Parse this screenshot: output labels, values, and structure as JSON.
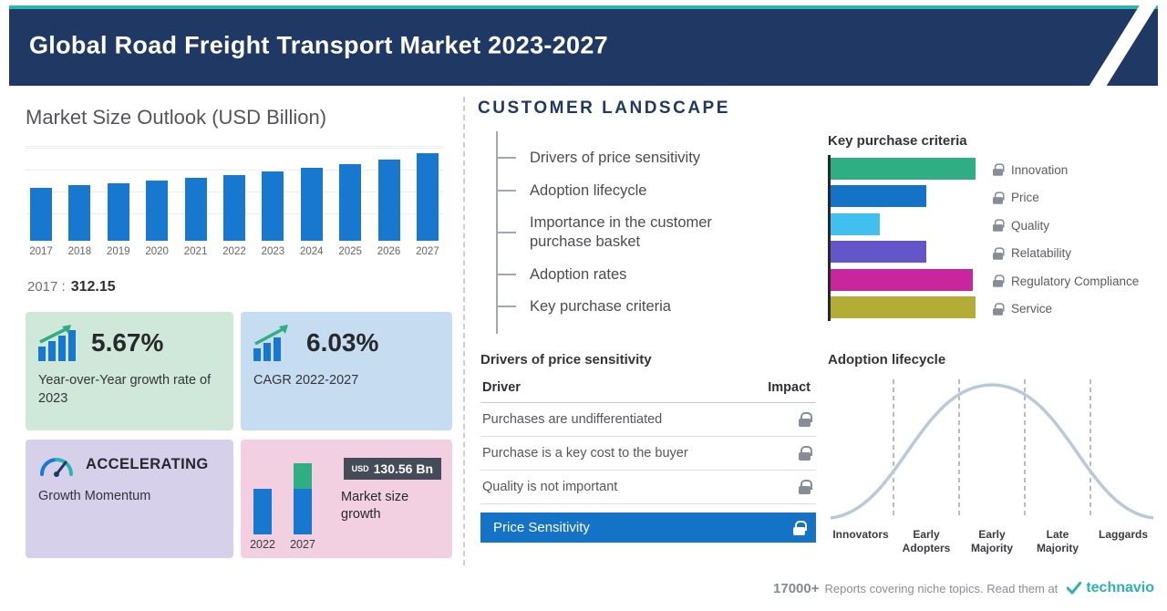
{
  "header": {
    "title": "Global Road Freight Transport Market 2023-2027"
  },
  "market": {
    "title": "Market Size Outlook (USD Billion)",
    "base_label": "2017 :",
    "base_value": "312.15"
  },
  "cards": {
    "yoy_value": "5.67%",
    "yoy_label": "Year-over-Year growth rate of 2023",
    "cagr_value": "6.03%",
    "cagr_label": "CAGR 2022-2027",
    "momentum_title": "ACCELERATING",
    "momentum_label": "Growth Momentum",
    "growth_badge_unit": "USD",
    "growth_badge_value": "130.56 Bn",
    "growth_label": "Market size growth",
    "growth_years": [
      "2022",
      "2027"
    ]
  },
  "customer": {
    "heading": "CUSTOMER LANDSCAPE",
    "items": [
      "Drivers of price sensitivity",
      "Adoption lifecycle",
      "Importance in the customer purchase basket",
      "Adoption rates",
      "Key purchase criteria"
    ]
  },
  "kpc": {
    "title": "Key purchase criteria"
  },
  "drivers": {
    "title": "Drivers of price sensitivity",
    "col_driver": "Driver",
    "col_impact": "Impact",
    "rows": [
      "Purchases are undifferentiated",
      "Purchase is a key cost to the buyer",
      "Quality is not important"
    ],
    "highlight": "Price Sensitivity"
  },
  "adoption": {
    "title": "Adoption lifecycle"
  },
  "footer": {
    "count": "17000+",
    "text": "Reports covering niche topics. Read them at",
    "brand": "technavio"
  },
  "chart_data": [
    {
      "type": "bar",
      "title": "Market Size Outlook (USD Billion)",
      "categories": [
        "2017",
        "2018",
        "2019",
        "2020",
        "2021",
        "2022",
        "2023",
        "2024",
        "2025",
        "2026",
        "2027"
      ],
      "values": [
        312.15,
        325.3,
        339.0,
        353.2,
        368.1,
        383.4,
        405.1,
        428.0,
        452.2,
        477.8,
        513.9
      ],
      "bar_color": "#1878cf",
      "ylabel": "USD Billion",
      "note": "2017 labeled 312.15; later bars estimated from 5.67% YoY (2023), 6.03% CAGR and USD 130.56 Bn growth 2022-2027"
    },
    {
      "type": "bar",
      "orientation": "horizontal",
      "title": "Key purchase criteria",
      "categories": [
        "Innovation",
        "Price",
        "Quality",
        "Relatability",
        "Regulatory Compliance",
        "Service"
      ],
      "values": [
        100,
        66,
        34,
        66,
        98,
        100
      ],
      "colors": [
        "#2fae84",
        "#1473c6",
        "#41c0f0",
        "#6456c8",
        "#c9259c",
        "#b3ad37"
      ],
      "note": "relative bar lengths; values not labeled in source"
    },
    {
      "type": "area",
      "title": "Adoption lifecycle",
      "shape": "bell curve",
      "stages": [
        "Innovators",
        "Early Adopters",
        "Early Majority",
        "Late Majority",
        "Laggards"
      ]
    }
  ]
}
